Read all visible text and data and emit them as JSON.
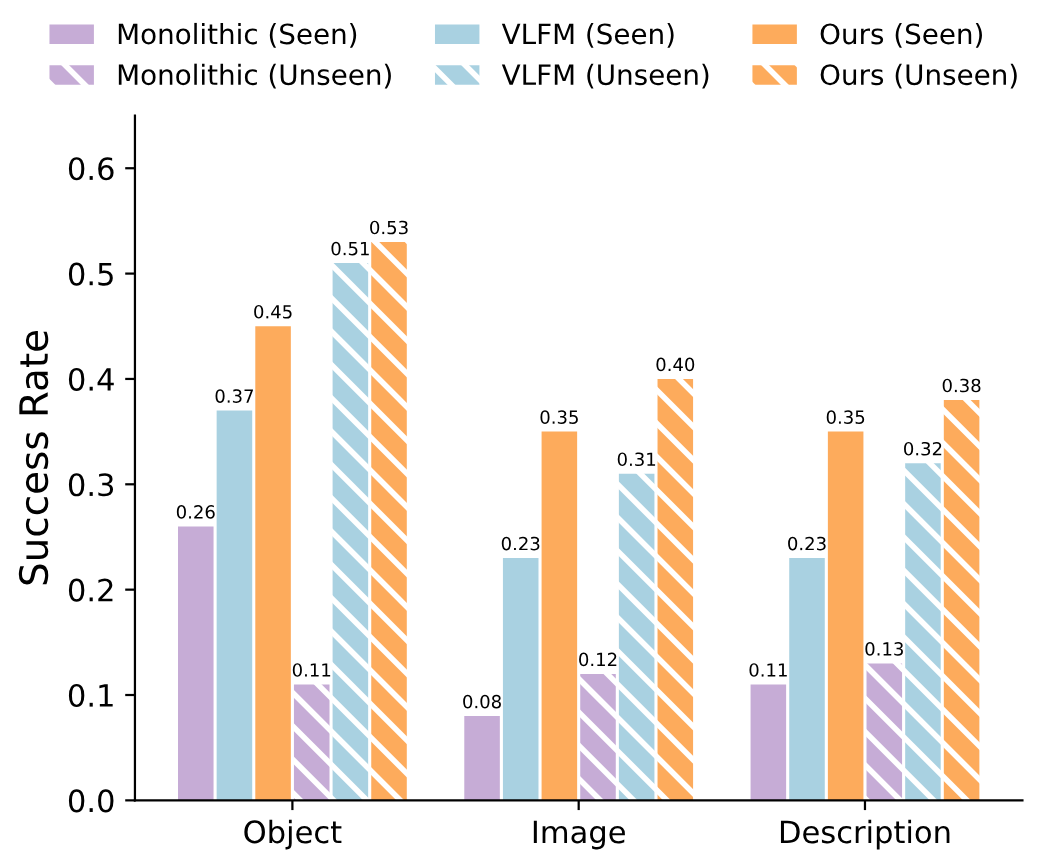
{
  "chart_data": {
    "type": "bar",
    "ylabel": "Success Rate",
    "categories": [
      "Object",
      "Image",
      "Description"
    ],
    "series": [
      {
        "name": "Monolithic (Seen)",
        "color": "#c6acd6",
        "values": [
          0.26,
          0.08,
          0.11
        ],
        "value_labels": [
          "0.26",
          "0.08",
          "0.11"
        ]
      },
      {
        "name": "VLFM (Seen)",
        "color": "#a9d1e1",
        "values": [
          0.37,
          0.23,
          0.23
        ],
        "value_labels": [
          "0.37",
          "0.23",
          "0.23"
        ]
      },
      {
        "name": "Ours (Seen)",
        "color": "#fdab5c",
        "values": [
          0.45,
          0.35,
          0.35
        ],
        "value_labels": [
          "0.45",
          "0.35",
          "0.35"
        ]
      },
      {
        "name": "Monolithic (Unseen)",
        "color": "#c6acd6",
        "line_style": "dashed",
        "values": [
          0.11,
          0.12,
          0.13
        ],
        "value_labels": [
          "0.11",
          "0.12",
          "0.13"
        ]
      },
      {
        "name": "VLFM (Unseen)",
        "color": "#a9d1e1",
        "line_style": "dashed",
        "values": [
          0.51,
          0.31,
          0.32
        ],
        "value_labels": [
          "0.51",
          "0.31",
          "0.32"
        ]
      },
      {
        "name": "Ours (Unseen)",
        "color": "#fdab5c",
        "line_style": "dashed",
        "values": [
          0.53,
          0.4,
          0.38
        ],
        "value_labels": [
          "0.53",
          "0.40",
          "0.38"
        ]
      }
    ],
    "ylim": [
      0,
      0.65
    ],
    "yticks": [
      {
        "value": 0,
        "label": "0.0"
      },
      0.1,
      0.2,
      0.3,
      0.4,
      0.5,
      0.6
    ],
    "legend": "top",
    "grid": false
  }
}
